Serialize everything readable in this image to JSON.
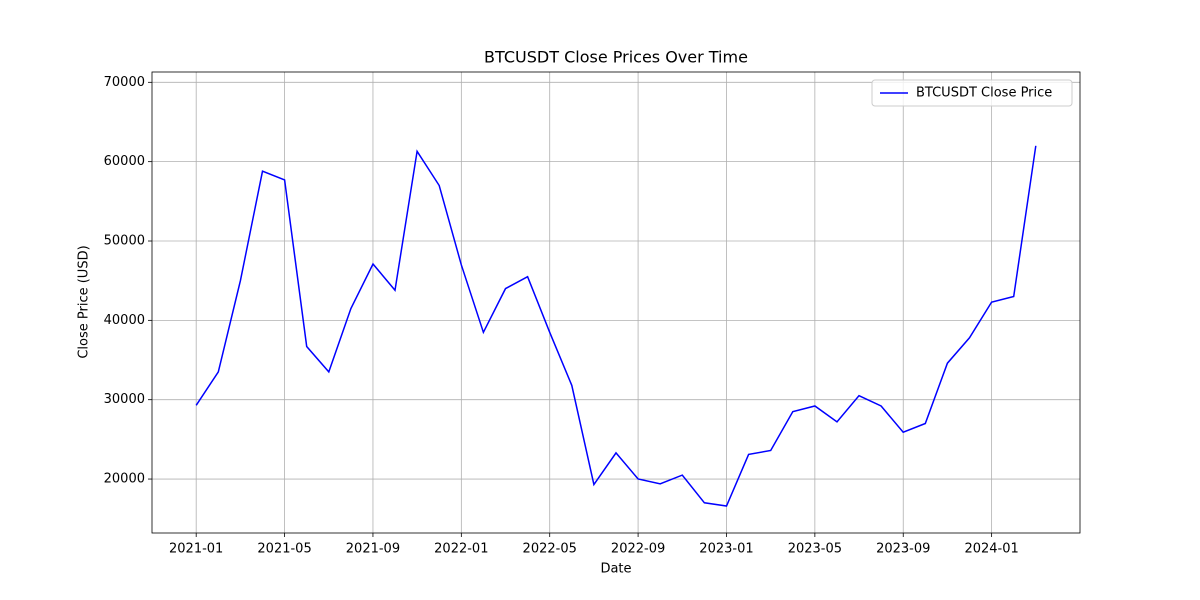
{
  "chart_data": {
    "type": "line",
    "title": "BTCUSDT Close Prices Over Time",
    "x_label": "Date",
    "y_label": "Close Price (USD)",
    "x": [
      "2021-01",
      "2021-02",
      "2021-03",
      "2021-04",
      "2021-05",
      "2021-06",
      "2021-07",
      "2021-08",
      "2021-09",
      "2021-10",
      "2021-11",
      "2021-12",
      "2022-01",
      "2022-02",
      "2022-03",
      "2022-04",
      "2022-05",
      "2022-06",
      "2022-07",
      "2022-08",
      "2022-09",
      "2022-10",
      "2022-11",
      "2022-12",
      "2023-01",
      "2023-02",
      "2023-03",
      "2023-04",
      "2023-05",
      "2023-06",
      "2023-07",
      "2023-08",
      "2023-09",
      "2023-10",
      "2023-11",
      "2023-12",
      "2024-01",
      "2024-02",
      "2024-03"
    ],
    "series": [
      {
        "name": "BTCUSDT Close Price",
        "color": "#0000ff",
        "values": [
          29300,
          33500,
          45000,
          58800,
          57700,
          36700,
          33500,
          41500,
          47100,
          43800,
          61300,
          57000,
          47000,
          38500,
          44000,
          45500,
          38500,
          31800,
          19300,
          23300,
          20000,
          19400,
          20500,
          17000,
          16600,
          23100,
          23600,
          28500,
          29200,
          27200,
          30500,
          29200,
          25900,
          27000,
          34600,
          37800,
          42300,
          43000,
          62000
        ]
      }
    ],
    "xlim": [
      "2020-11",
      "2024-05"
    ],
    "xticks": [
      "2021-01",
      "2021-05",
      "2021-09",
      "2022-01",
      "2022-05",
      "2022-09",
      "2023-01",
      "2023-05",
      "2023-09",
      "2024-01"
    ],
    "ylim": [
      13200,
      71300
    ],
    "yticks": [
      20000,
      30000,
      40000,
      50000,
      60000,
      70000
    ],
    "grid": true,
    "legend": "upper right"
  }
}
